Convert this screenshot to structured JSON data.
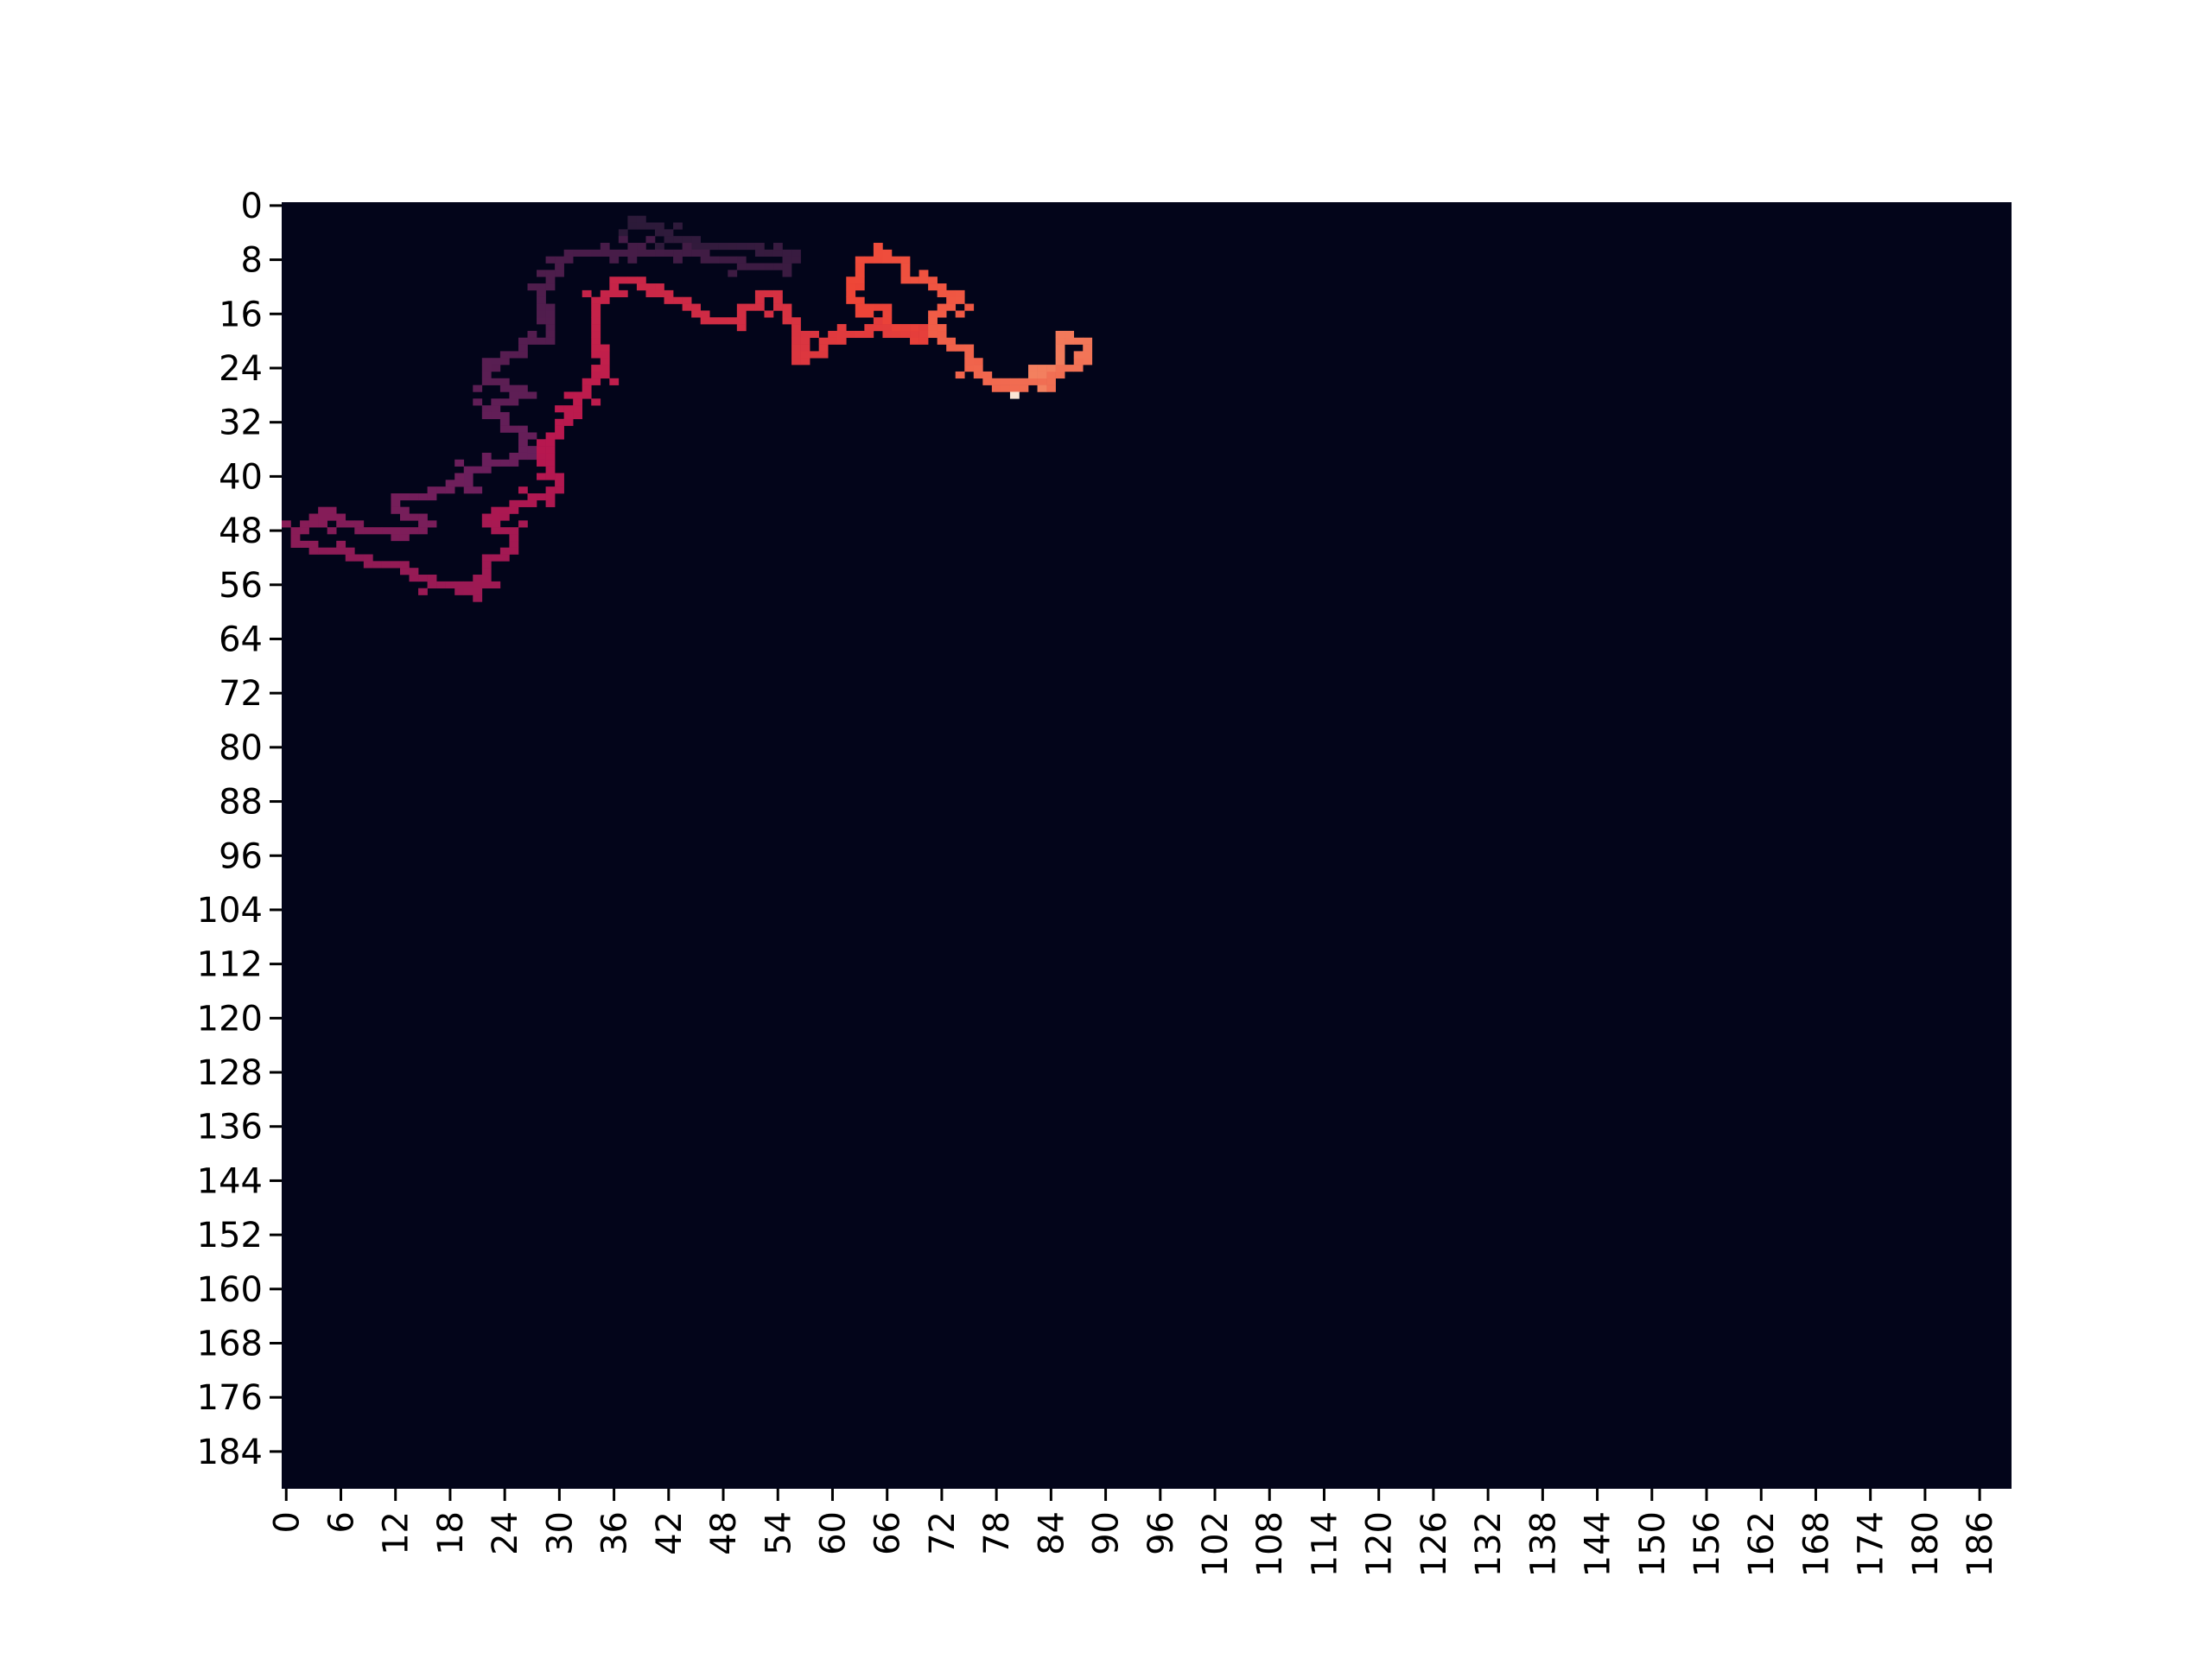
{
  "chart_data": {
    "type": "heatmap",
    "title": "",
    "xlabel": "",
    "ylabel": "",
    "rows": 190,
    "cols": 190,
    "x_ticks": [
      0,
      6,
      12,
      18,
      24,
      30,
      36,
      42,
      48,
      54,
      60,
      66,
      72,
      78,
      84,
      90,
      96,
      102,
      108,
      114,
      120,
      126,
      132,
      138,
      144,
      150,
      156,
      162,
      168,
      174,
      180,
      186
    ],
    "y_ticks": [
      0,
      8,
      16,
      24,
      32,
      40,
      48,
      56,
      64,
      72,
      80,
      88,
      96,
      104,
      112,
      120,
      128,
      136,
      144,
      152,
      160,
      168,
      176,
      184
    ],
    "background_value": 0,
    "colormap": "rocket",
    "colors": {
      "background": "#03051a",
      "low": "#2c1a39",
      "mid_low": "#6b1f5c",
      "mid": "#b8174f",
      "mid_high": "#ee4637",
      "high": "#f59b72",
      "max": "#fbe6d6"
    },
    "colorbar": false,
    "grid": false,
    "legend": "none",
    "path": [
      [
        38,
        3
      ],
      [
        40,
        3
      ],
      [
        42,
        4
      ],
      [
        44,
        5
      ],
      [
        46,
        6
      ],
      [
        48,
        6
      ],
      [
        50,
        6
      ],
      [
        52,
        7
      ],
      [
        54,
        7
      ],
      [
        56,
        8
      ],
      [
        54,
        9
      ],
      [
        50,
        9
      ],
      [
        46,
        8
      ],
      [
        42,
        7
      ],
      [
        38,
        6
      ],
      [
        34,
        7
      ],
      [
        31,
        8
      ],
      [
        30,
        10
      ],
      [
        29,
        12
      ],
      [
        28,
        14
      ],
      [
        28,
        16
      ],
      [
        29,
        18
      ],
      [
        27,
        20
      ],
      [
        26,
        22
      ],
      [
        24,
        22
      ],
      [
        22,
        23
      ],
      [
        22,
        25
      ],
      [
        24,
        26
      ],
      [
        26,
        27
      ],
      [
        24,
        29
      ],
      [
        22,
        31
      ],
      [
        24,
        31
      ],
      [
        26,
        33
      ],
      [
        26,
        36
      ],
      [
        24,
        38
      ],
      [
        22,
        39
      ],
      [
        20,
        40
      ],
      [
        18,
        41
      ],
      [
        16,
        42
      ],
      [
        14,
        43
      ],
      [
        12,
        44
      ],
      [
        14,
        46
      ],
      [
        16,
        47
      ],
      [
        14,
        48
      ],
      [
        12,
        49
      ],
      [
        10,
        48
      ],
      [
        8,
        47
      ],
      [
        6,
        47
      ],
      [
        4,
        46
      ],
      [
        2,
        47
      ],
      [
        1,
        48
      ],
      [
        3,
        50
      ],
      [
        5,
        51
      ],
      [
        7,
        52
      ],
      [
        9,
        53
      ],
      [
        12,
        53
      ],
      [
        14,
        54
      ],
      [
        16,
        55
      ],
      [
        18,
        56
      ],
      [
        20,
        56
      ],
      [
        21,
        57
      ],
      [
        21,
        55
      ],
      [
        22,
        53
      ],
      [
        25,
        51
      ],
      [
        25,
        49
      ],
      [
        23,
        48
      ],
      [
        22,
        46
      ],
      [
        24,
        45
      ],
      [
        26,
        44
      ],
      [
        28,
        43
      ],
      [
        30,
        42
      ],
      [
        29,
        40
      ],
      [
        28,
        38
      ],
      [
        29,
        36
      ],
      [
        30,
        34
      ],
      [
        31,
        32
      ],
      [
        32,
        30
      ],
      [
        33,
        28
      ],
      [
        34,
        26
      ],
      [
        35,
        24
      ],
      [
        35,
        22
      ],
      [
        34,
        20
      ],
      [
        34,
        18
      ],
      [
        34,
        16
      ],
      [
        35,
        14
      ],
      [
        36,
        12
      ],
      [
        38,
        11
      ],
      [
        40,
        12
      ],
      [
        42,
        13
      ],
      [
        44,
        14
      ],
      [
        46,
        16
      ],
      [
        48,
        17
      ],
      [
        50,
        15
      ],
      [
        52,
        13
      ],
      [
        54,
        13
      ],
      [
        55,
        15
      ],
      [
        56,
        17
      ],
      [
        56,
        19
      ],
      [
        57,
        21
      ],
      [
        56,
        23
      ],
      [
        58,
        22
      ],
      [
        60,
        20
      ],
      [
        62,
        19
      ],
      [
        64,
        18
      ],
      [
        66,
        18
      ],
      [
        68,
        19
      ],
      [
        70,
        20
      ],
      [
        68,
        18
      ],
      [
        66,
        16
      ],
      [
        64,
        15
      ],
      [
        62,
        14
      ],
      [
        62,
        12
      ],
      [
        63,
        10
      ],
      [
        64,
        8
      ],
      [
        66,
        7
      ],
      [
        68,
        9
      ],
      [
        70,
        11
      ],
      [
        72,
        12
      ],
      [
        74,
        13
      ],
      [
        73,
        15
      ],
      [
        71,
        17
      ],
      [
        72,
        19
      ],
      [
        73,
        21
      ],
      [
        75,
        23
      ],
      [
        77,
        25
      ],
      [
        79,
        27
      ],
      [
        81,
        27
      ],
      [
        83,
        26
      ],
      [
        85,
        25
      ],
      [
        87,
        24
      ],
      [
        88,
        22
      ],
      [
        87,
        20
      ],
      [
        86,
        19
      ],
      [
        85,
        20
      ],
      [
        85,
        22
      ],
      [
        84,
        24
      ],
      [
        82,
        25
      ],
      [
        80,
        26
      ],
      [
        78,
        27
      ],
      [
        80,
        28
      ]
    ]
  }
}
